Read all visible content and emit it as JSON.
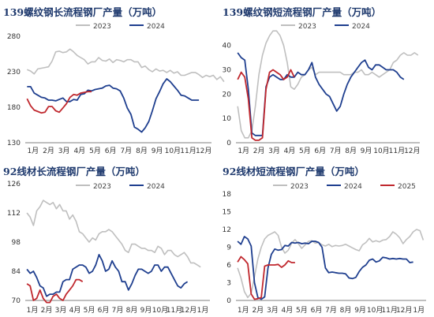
{
  "colors": {
    "c2023": "#bfbfbf",
    "c2024": "#1f3f8f",
    "c2025": "#c0282e",
    "title": "#1f3a6e"
  },
  "chart_data": [
    {
      "type": "line",
      "title": "139螺纹钢长流程钢厂产量（万吨）",
      "x_labels": [
        "1月",
        "2月",
        "3月",
        "4月",
        "5月",
        "6月",
        "7月",
        "8月",
        "9月",
        "10月",
        "11月",
        "12月"
      ],
      "yticks": [
        130,
        180,
        230,
        280
      ],
      "ylim": [
        130,
        280
      ],
      "legend_position": "top",
      "series": [
        {
          "name": "2023",
          "color_key": "c2023",
          "x_start": 0,
          "values": [
            233,
            231,
            227,
            234,
            235,
            236,
            237,
            245,
            258,
            259,
            257,
            258,
            262,
            258,
            253,
            250,
            247,
            241,
            244,
            244,
            250,
            246,
            245,
            248,
            243,
            247,
            246,
            244,
            247,
            247,
            244,
            244,
            236,
            238,
            233,
            230,
            234,
            231,
            232,
            229,
            232,
            228,
            230,
            225,
            225,
            227,
            229,
            229,
            226,
            222,
            225,
            223,
            225,
            219,
            223,
            216
          ]
        },
        {
          "name": "2024",
          "color_key": "c2024",
          "x_start": 0,
          "values": [
            209,
            209,
            200,
            197,
            194,
            193,
            190,
            190,
            189,
            191,
            193,
            188,
            188,
            191,
            190,
            198,
            199,
            204,
            203,
            205,
            206,
            207,
            210,
            211,
            207,
            206,
            203,
            193,
            179,
            170,
            152,
            149,
            145,
            151,
            160,
            175,
            192,
            202,
            213,
            220,
            216,
            210,
            204,
            197,
            196,
            193,
            190,
            190,
            190
          ]
        },
        {
          "name": "",
          "color_key": "c2025",
          "x_start": 0,
          "values": [
            192,
            182,
            176,
            174,
            172,
            173,
            181,
            181,
            175,
            173,
            179,
            185,
            194,
            198,
            197,
            200,
            201,
            202,
            202
          ]
        }
      ]
    },
    {
      "type": "line",
      "title": "139螺纹钢短流程钢厂产量（万吨）",
      "x_labels": [
        "1月",
        "2月",
        "3月",
        "4月",
        "5月",
        "6月",
        "7月",
        "8月",
        "9月",
        "10月",
        "11月",
        "12月"
      ],
      "yticks": [
        0,
        10,
        20,
        30,
        40
      ],
      "ylim": [
        0,
        48
      ],
      "legend_position": "top",
      "series": [
        {
          "name": "2023",
          "color_key": "c2023",
          "x_start": 0,
          "values": [
            15,
            5,
            2,
            2,
            5,
            15,
            28,
            36,
            41,
            44,
            46,
            46,
            44,
            40,
            33,
            23,
            22,
            24,
            27,
            28,
            30,
            31,
            28,
            29,
            29,
            29,
            29,
            29,
            29,
            29,
            28,
            28,
            28,
            29,
            29,
            30,
            28,
            28,
            29,
            28,
            27,
            28,
            29,
            30,
            33,
            34,
            36,
            37,
            36,
            36,
            37,
            36
          ]
        },
        {
          "name": "2024",
          "color_key": "c2024",
          "x_start": 0,
          "values": [
            37,
            35,
            34,
            22,
            4,
            3,
            3,
            3,
            23,
            27,
            28,
            27,
            26,
            26,
            28,
            27,
            27,
            29,
            28,
            28,
            30,
            33,
            27,
            24,
            22,
            20,
            19,
            16,
            13,
            15,
            20,
            24,
            27,
            29,
            31,
            33,
            34,
            31,
            30,
            32,
            32,
            31,
            30,
            30,
            30,
            29,
            27,
            26
          ]
        },
        {
          "name": "",
          "color_key": "c2025",
          "x_start": 0,
          "values": [
            26,
            29,
            27,
            18,
            2,
            1,
            1,
            2,
            22,
            29,
            30,
            29,
            28,
            26,
            27,
            30,
            27
          ]
        }
      ]
    },
    {
      "type": "line",
      "title": "92线材长流程钢厂产量（万吨）",
      "x_labels": [
        "1月",
        "2月",
        "3月",
        "4月",
        "5月",
        "6月",
        "7月",
        "8月",
        "9月",
        "10月",
        "11月",
        "12月",
        "1月"
      ],
      "yticks": [
        70,
        84,
        98,
        112,
        126
      ],
      "ylim": [
        70,
        126
      ],
      "legend_position": "top",
      "series": [
        {
          "name": "2023",
          "color_key": "c2023",
          "x_start": 0,
          "values": [
            112,
            110,
            106,
            113,
            115,
            118,
            117,
            116,
            117,
            114,
            116,
            113,
            113,
            109,
            111,
            108,
            103,
            102,
            100,
            98,
            100,
            99,
            102,
            103,
            103,
            104,
            103,
            101,
            99,
            97,
            94,
            93,
            97,
            97,
            96,
            95,
            95,
            94,
            94,
            93,
            96,
            95,
            92,
            94,
            94,
            92,
            91,
            92,
            93,
            91,
            88,
            88,
            87,
            86
          ]
        },
        {
          "name": "2024",
          "color_key": "c2024",
          "x_start": 0,
          "values": [
            85,
            83,
            84,
            81,
            77,
            76,
            72,
            73,
            73,
            74,
            74,
            79,
            80,
            80,
            85,
            86,
            87,
            87,
            86,
            83,
            84,
            87,
            92,
            89,
            84,
            85,
            89,
            86,
            84,
            79,
            79,
            75,
            78,
            82,
            85,
            85,
            84,
            83,
            84,
            87,
            87,
            84,
            86,
            86,
            83,
            80,
            77,
            76,
            78,
            79
          ]
        },
        {
          "name": "",
          "color_key": "c2025",
          "x_start": 0,
          "values": [
            78,
            77,
            70,
            71,
            75,
            71,
            69,
            69,
            72,
            73,
            71,
            70,
            73,
            75,
            77,
            80,
            80,
            79
          ]
        }
      ]
    },
    {
      "type": "line",
      "title": "92线材短流程钢厂产量（万吨）",
      "x_labels": [
        "1月",
        "2月",
        "3月",
        "4月",
        "5月",
        "6月",
        "7月",
        "8月",
        "9月",
        "10月",
        "11月",
        "12月",
        "1月"
      ],
      "yticks": [
        0,
        3,
        6,
        9,
        12,
        15,
        18
      ],
      "ylim": [
        0,
        18
      ],
      "legend_position": "top",
      "series": [
        {
          "name": "2023",
          "color_key": "c2023",
          "x_start": 0,
          "values": [
            5.5,
            3.8,
            1.5,
            0.5,
            1.2,
            4,
            7,
            9,
            10.4,
            11,
            11.3,
            11.6,
            11,
            9,
            8,
            8.5,
            9.7,
            10.3,
            9.6,
            8.8,
            9.4,
            10,
            10.1,
            9.7,
            9.8,
            9.4,
            9.2,
            9.5,
            9.1,
            9.3,
            9.2,
            9.3,
            9.5,
            9.2,
            8.9,
            8.6,
            8.4,
            9.4,
            9.8,
            10.5,
            9.9,
            10.1,
            9.9,
            10.2,
            10.3,
            10.8,
            11.6,
            11.2,
            10.6,
            9.6,
            10.3,
            10.8,
            11.6,
            12,
            11.8,
            10.2
          ]
        },
        {
          "name": "2024",
          "color_key": "c2024",
          "x_start": 0,
          "values": [
            10,
            9.5,
            10.8,
            10.4,
            9.2,
            3,
            0.5,
            0.2,
            0.6,
            5.5,
            7.8,
            8.7,
            8.5,
            8.6,
            9.3,
            9.2,
            9.8,
            9.7,
            9.8,
            9.6,
            9.7,
            9.6,
            10,
            10,
            9.8,
            9,
            5.5,
            4.7,
            4.8,
            4.7,
            4.6,
            4.6,
            4.5,
            3.8,
            3.7,
            3.9,
            4.9,
            5.6,
            6,
            6.8,
            7,
            6.5,
            6.7,
            7.3,
            7.2,
            7,
            7.1,
            7,
            7.1,
            7,
            7,
            6.4,
            6.5
          ]
        },
        {
          "name": "2025",
          "color_key": "c2025",
          "x_start": 0,
          "values": [
            6.5,
            7.4,
            6.9,
            6.2,
            1.1,
            0.2,
            0.3,
            0.5,
            5.8,
            6,
            6,
            6,
            6.1,
            5.6,
            6,
            6.7,
            6.4,
            6.4
          ]
        }
      ]
    }
  ]
}
